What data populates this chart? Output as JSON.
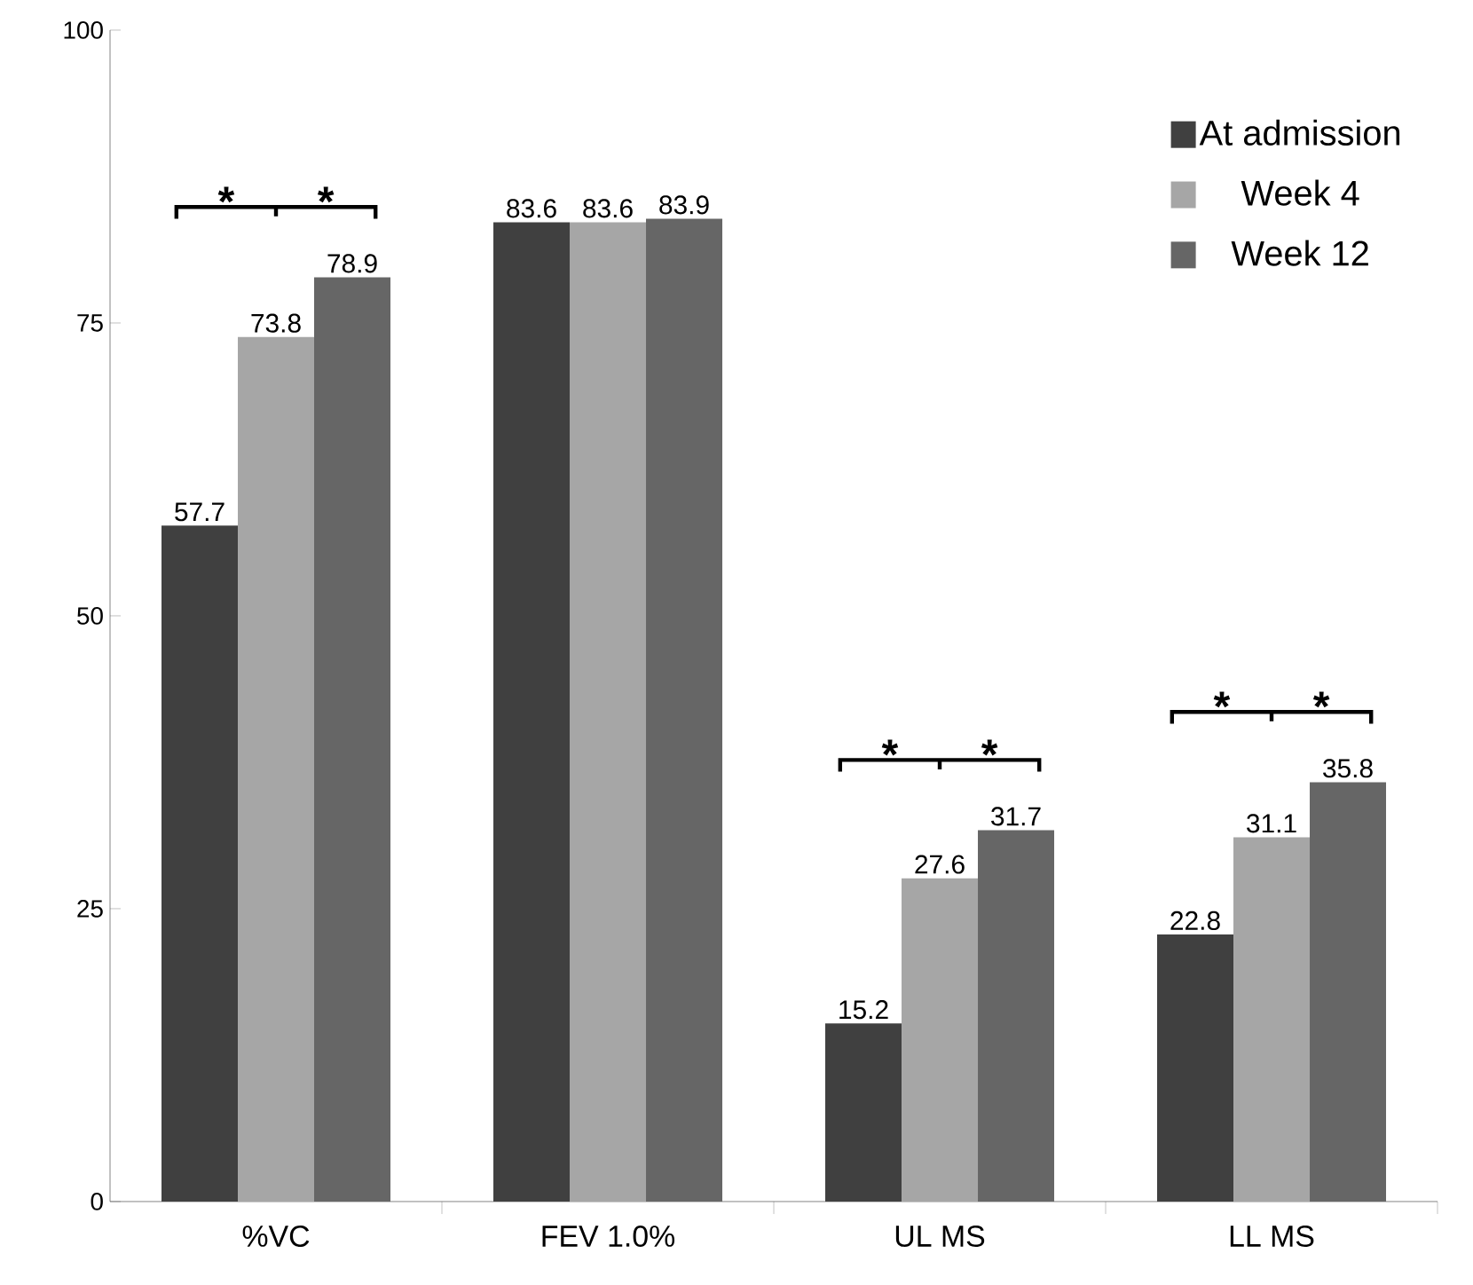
{
  "chart_data": {
    "type": "bar",
    "categories": [
      "%VC",
      "FEV 1.0%",
      "UL MS",
      "LL MS"
    ],
    "series": [
      {
        "name": "At admission",
        "color": "#404040",
        "values": [
          57.7,
          83.6,
          15.2,
          22.8
        ]
      },
      {
        "name": "Week 4",
        "color": "#a6a6a6",
        "values": [
          73.8,
          83.6,
          27.6,
          31.1
        ]
      },
      {
        "name": "Week 12",
        "color": "#666666",
        "values": [
          78.9,
          83.9,
          31.7,
          35.8
        ]
      }
    ],
    "ylim": [
      0,
      100
    ],
    "yticks": [
      0,
      25,
      50,
      75,
      100
    ],
    "data_labels": true,
    "grid": false,
    "legend": "top right",
    "annotations": [
      "*",
      "*",
      "*",
      "*",
      "*",
      "*"
    ]
  }
}
